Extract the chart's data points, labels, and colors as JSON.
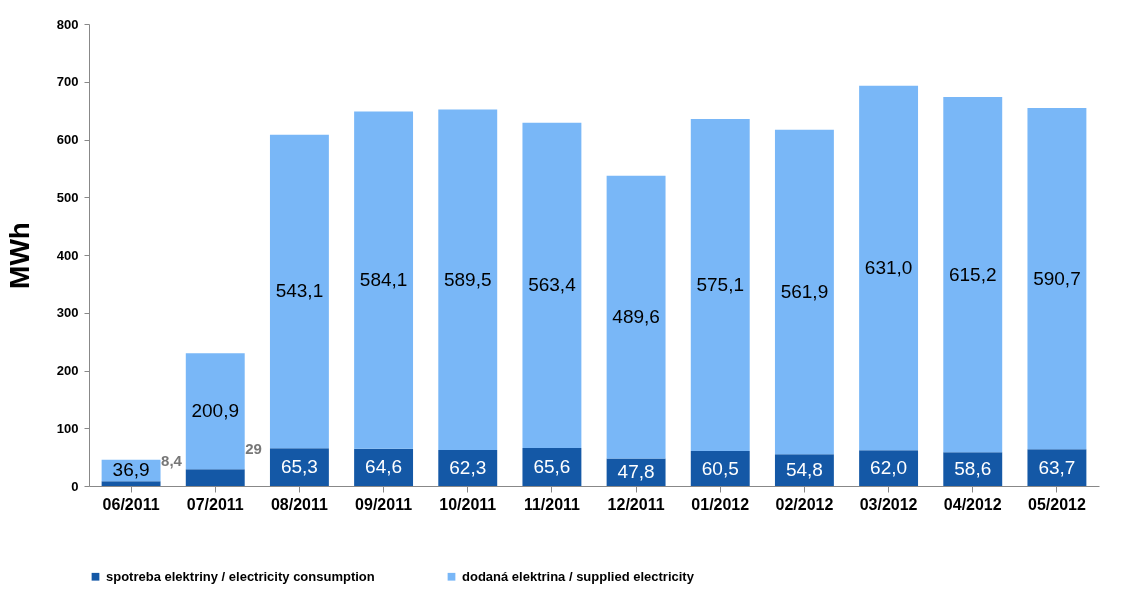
{
  "chart_data": {
    "type": "bar",
    "stacked": true,
    "ylabel": "MWh",
    "categories": [
      "06/2011",
      "07/2011",
      "08/2011",
      "09/2011",
      "10/2011",
      "11/2011",
      "12/2011",
      "01/2012",
      "02/2012",
      "03/2012",
      "04/2012",
      "05/2012"
    ],
    "series": [
      {
        "name": "spotreba elektriny / electricity consumption",
        "color": "#1458a6",
        "values": [
          8.4,
          29,
          65.3,
          64.6,
          62.3,
          65.6,
          47.8,
          60.5,
          54.8,
          62.0,
          58.6,
          63.7
        ],
        "value_labels": [
          "8,4",
          "29",
          "65,3",
          "64,6",
          "62,3",
          "65,6",
          "47,8",
          "60,5",
          "54,8",
          "62,0",
          "58,6",
          "63,7"
        ]
      },
      {
        "name": "dodaná elektrina / supplied electricity",
        "color": "#79b7f7",
        "values": [
          36.9,
          200.9,
          543.1,
          584.1,
          589.5,
          563.4,
          489.6,
          575.1,
          561.9,
          631.0,
          615.2,
          590.7
        ],
        "value_labels": [
          "36,9",
          "200,9",
          "543,1",
          "584,1",
          "589,5",
          "563,4",
          "489,6",
          "575,1",
          "561,9",
          "631,0",
          "615,2",
          "590,7"
        ]
      }
    ],
    "ylim": [
      0,
      800
    ],
    "yticks": [
      0,
      100,
      200,
      300,
      400,
      500,
      600,
      700,
      800
    ],
    "grid": false,
    "legend": "bottom"
  }
}
